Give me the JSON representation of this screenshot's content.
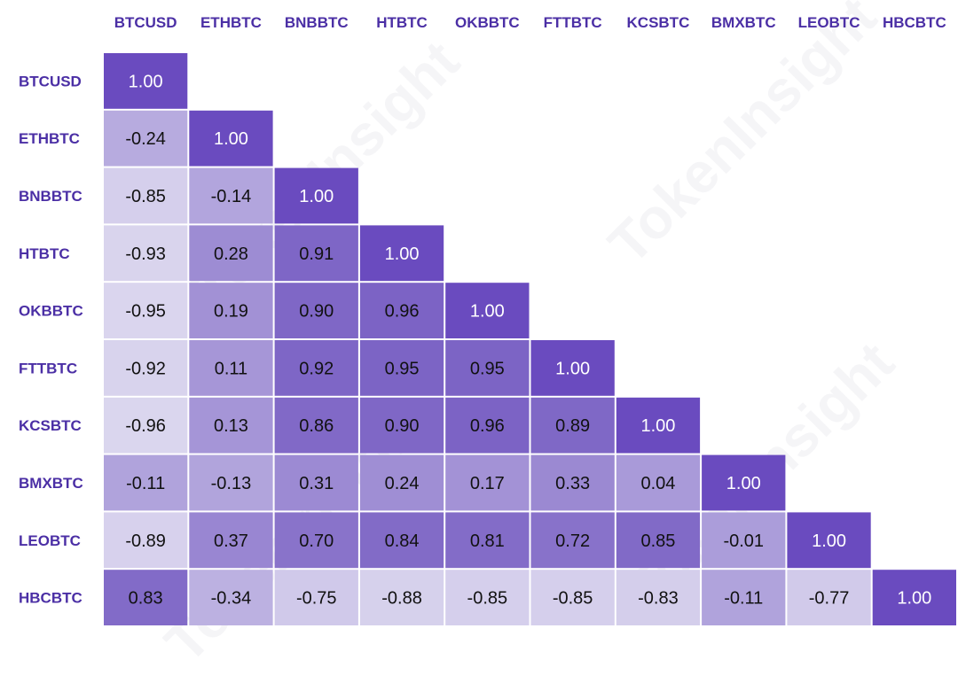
{
  "chart_data": {
    "type": "heatmap",
    "title": "",
    "xlabel": "",
    "ylabel": "",
    "categories": [
      "BTCUSD",
      "ETHBTC",
      "BNBBTC",
      "HTBTC",
      "OKBBTC",
      "FTTBTC",
      "KCSBTC",
      "BMXBTC",
      "LEOBTC",
      "HBCBTC"
    ],
    "values": [
      [
        1.0
      ],
      [
        -0.24,
        1.0
      ],
      [
        -0.85,
        -0.14,
        1.0
      ],
      [
        -0.93,
        0.28,
        0.91,
        1.0
      ],
      [
        -0.95,
        0.19,
        0.9,
        0.96,
        1.0
      ],
      [
        -0.92,
        0.11,
        0.92,
        0.95,
        0.95,
        1.0
      ],
      [
        -0.96,
        0.13,
        0.86,
        0.9,
        0.96,
        0.89,
        1.0
      ],
      [
        -0.11,
        -0.13,
        0.31,
        0.24,
        0.17,
        0.33,
        0.04,
        1.0
      ],
      [
        -0.89,
        0.37,
        0.7,
        0.84,
        0.81,
        0.72,
        0.85,
        -0.01,
        1.0
      ],
      [
        0.83,
        -0.34,
        -0.75,
        -0.88,
        -0.85,
        -0.85,
        -0.83,
        -0.11,
        -0.77,
        1.0
      ]
    ],
    "value_range": [
      -1,
      1
    ],
    "lower_triangle_only": true,
    "colors": {
      "label": "#4b2fa5",
      "diagonal": "#6a4bbf",
      "low": "#dcd8ef",
      "high": "#7a61c4",
      "text_dark": "#111111",
      "text_light": "#ffffff"
    }
  },
  "watermark": {
    "text": "TokenInsight"
  }
}
